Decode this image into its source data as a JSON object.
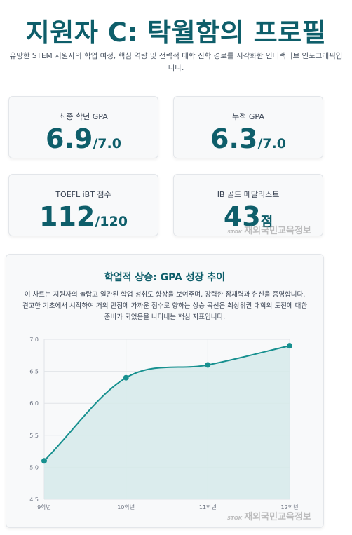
{
  "header": {
    "title": "지원자 C: 탁월함의 프로필",
    "subtitle": "유망한 STEM 지원자의 학업 여정, 핵심 역량 및 전략적 대학 진학 경로를 시각화한 인터랙티브 인포그래픽입니다."
  },
  "stats": [
    {
      "label": "최종 학년 GPA",
      "value": "6.9",
      "suffix": "/7.0"
    },
    {
      "label": "누적 GPA",
      "value": "6.3",
      "suffix": "/7.0"
    },
    {
      "label": "TOEFL iBT 점수",
      "value": "112",
      "suffix": "/120"
    },
    {
      "label": "IB 골드 메달리스트",
      "value": "43",
      "suffix": "점"
    }
  ],
  "chart_section": {
    "title": "학업적 상승: GPA 성장 추이",
    "description": "이 차트는 지원자의 놀랍고 일관된 학업 성취도 향상을 보여주며, 강력한 잠재력과 헌신을 증명합니다. 견고한 기초에서 시작하여 거의 만점에 가까운 점수로 향하는 상승 곡선은 최상위권 대학의 도전에 대한 준비가 되었음을 나타내는 핵심 지표입니다."
  },
  "chart_data": {
    "type": "area",
    "categories": [
      "9학년",
      "10학년",
      "11학년",
      "12학년"
    ],
    "values": [
      5.1,
      6.4,
      6.6,
      6.9
    ],
    "ylim": [
      4.5,
      7.0
    ],
    "yticks": [
      "4.5",
      "5.0",
      "5.5",
      "6.0",
      "6.5",
      "7.0"
    ],
    "grid": true,
    "line_color": "#17908f",
    "fill_color": "#d6eaea"
  },
  "watermark": {
    "small": "STOK",
    "text": "재외국민교육정보"
  },
  "colors": {
    "accent": "#0e5e6a"
  }
}
